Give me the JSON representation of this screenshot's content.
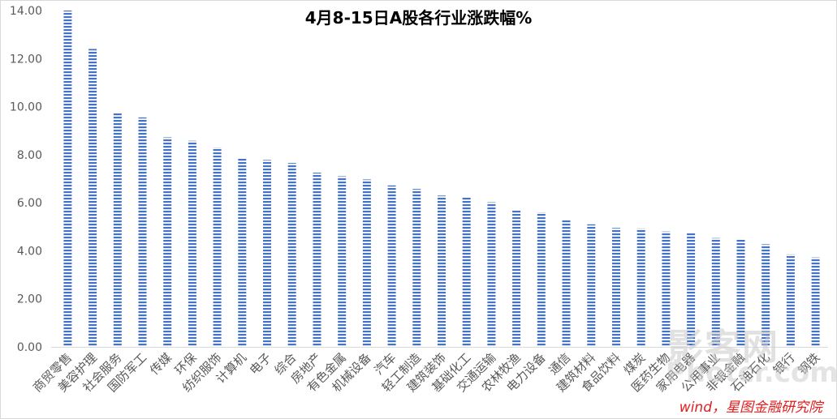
{
  "chart_data": {
    "type": "bar",
    "title": "4月8-15日A股各行业涨跌幅%",
    "categories": [
      "商贸零售",
      "美容护理",
      "社会服务",
      "国防军工",
      "传媒",
      "环保",
      "纺织服饰",
      "计算机",
      "电子",
      "综合",
      "房地产",
      "有色金属",
      "机械设备",
      "汽车",
      "轻工制造",
      "建筑装饰",
      "基础化工",
      "交通运输",
      "农林牧渔",
      "电力设备",
      "通信",
      "建筑材料",
      "食品饮料",
      "煤炭",
      "医药生物",
      "家用电器",
      "公用事业",
      "非银金融",
      "石油石化",
      "银行",
      "钢铁"
    ],
    "values": [
      14.0,
      12.4,
      9.75,
      9.55,
      8.72,
      8.58,
      8.3,
      7.85,
      7.78,
      7.65,
      7.25,
      7.1,
      6.97,
      6.72,
      6.57,
      6.3,
      6.23,
      6.02,
      5.7,
      5.6,
      5.3,
      5.1,
      4.95,
      4.93,
      4.8,
      4.75,
      4.53,
      4.48,
      4.27,
      3.85,
      3.72
    ],
    "ylim": [
      0,
      14
    ],
    "yticks": [
      "0.00",
      "2.00",
      "4.00",
      "6.00",
      "8.00",
      "10.00",
      "12.00",
      "14.00"
    ],
    "bar_color": "#4472c4",
    "bar_pattern": "horizontal-stripes",
    "grid": false,
    "legend": "none"
  },
  "source_note": "wind，星图金融研究院",
  "watermark": {
    "line1": "影客网",
    "line2": "Photcr.com"
  }
}
